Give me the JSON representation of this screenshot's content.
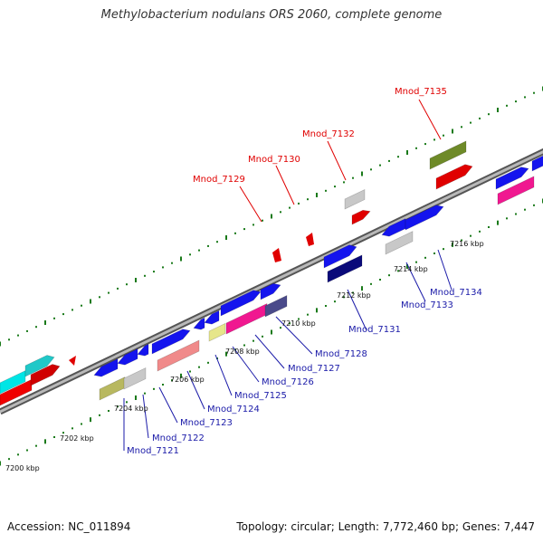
{
  "title": "Methylobacterium nodulans ORS 2060, complete genome",
  "footer": {
    "accession": "Accession: NC_011894",
    "summary": "Topology: circular; Length: 7,772,460 bp; Genes: 7,447"
  },
  "colors": {
    "backbone": "#8a8a8a",
    "tick": "#1a7a1a",
    "label_red": "#e00000",
    "label_blue": "#1a1aa8",
    "leader_red": "#e00000",
    "leader_blue": "#1a1aa8"
  },
  "scale_labels": [
    "7200 kbp",
    "7202 kbp",
    "7204 kbp",
    "7206 kbp",
    "7208 kbp",
    "7210 kbp",
    "7212 kbp",
    "7214 kbp",
    "7216 kbp"
  ],
  "upper_labels": [
    "Mnod_7129",
    "Mnod_7130",
    "Mnod_7132",
    "Mnod_7135"
  ],
  "lower_labels": [
    "Mnod_7121",
    "Mnod_7122",
    "Mnod_7123",
    "Mnod_7124",
    "Mnod_7125",
    "Mnod_7126",
    "Mnod_7127",
    "Mnod_7128",
    "Mnod_7131",
    "Mnod_7133",
    "Mnod_7134"
  ]
}
